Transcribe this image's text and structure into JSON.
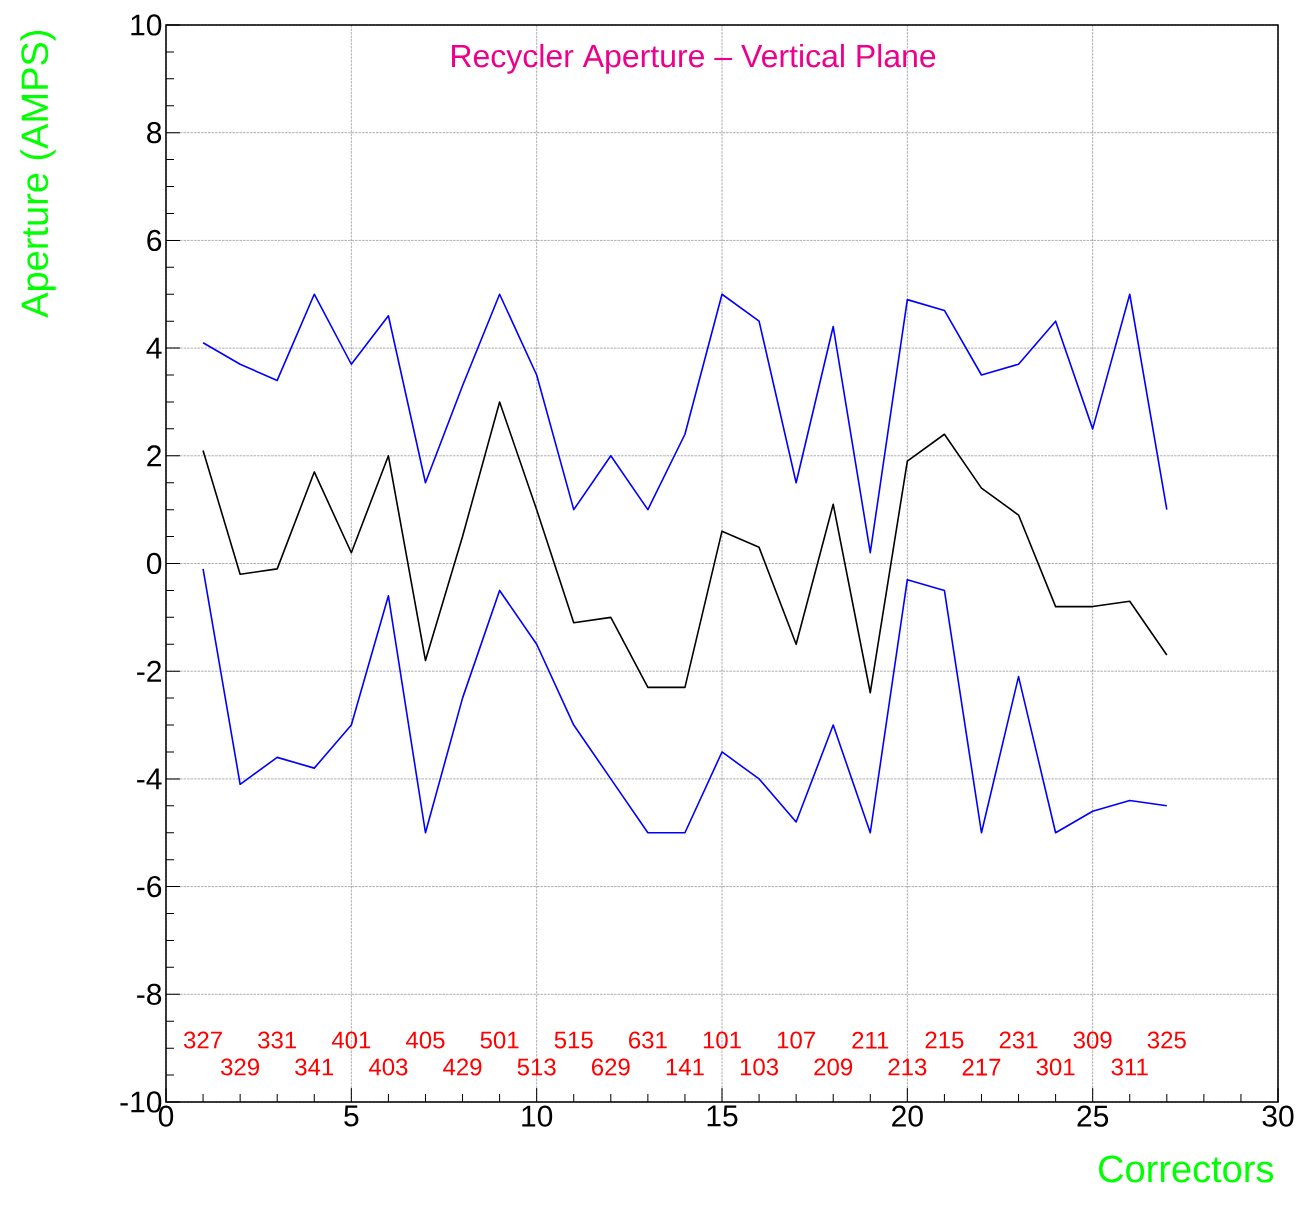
{
  "chart_data": {
    "type": "line",
    "title": "Recycler Aperture – Vertical Plane",
    "xlabel": "Correctors",
    "ylabel": "Aperture (AMPS)",
    "x": [
      1,
      2,
      3,
      4,
      5,
      6,
      7,
      8,
      9,
      10,
      11,
      12,
      13,
      14,
      15,
      16,
      17,
      18,
      19,
      20,
      21,
      22,
      23,
      24,
      25,
      26,
      27
    ],
    "series": [
      {
        "color": "#0000ff",
        "values": [
          4.1,
          3.7,
          3.4,
          5.0,
          3.7,
          4.6,
          1.5,
          3.3,
          5.0,
          3.5,
          1.0,
          2.0,
          1.0,
          2.4,
          5.0,
          4.5,
          1.5,
          4.4,
          0.2,
          4.9,
          4.7,
          3.5,
          3.7,
          4.5,
          2.5,
          5.0,
          1.0
        ]
      },
      {
        "color": "#000000",
        "values": [
          2.1,
          -0.2,
          -0.1,
          1.7,
          0.2,
          2.0,
          -1.8,
          0.5,
          3.0,
          1.0,
          -1.1,
          -1.0,
          -2.3,
          -2.3,
          0.6,
          0.3,
          -1.5,
          1.1,
          -2.4,
          1.9,
          2.4,
          1.4,
          0.9,
          -0.8,
          -0.8,
          -0.7,
          -1.7
        ]
      },
      {
        "color": "#0000ff",
        "values": [
          -0.1,
          -4.1,
          -3.6,
          -3.8,
          -3.0,
          -0.6,
          -5.0,
          -2.5,
          -0.5,
          -1.5,
          -3.0,
          -4.0,
          -5.0,
          -5.0,
          -3.5,
          -4.0,
          -4.8,
          -3.0,
          -5.0,
          -0.3,
          -0.5,
          -5.0,
          -2.1,
          -5.0,
          -4.6,
          -4.4,
          -4.5
        ]
      }
    ],
    "xlim": [
      0,
      30
    ],
    "xticks": [
      0,
      5,
      10,
      15,
      20,
      25,
      30
    ],
    "ylim": [
      -10,
      10
    ],
    "yticks": [
      -10,
      -8,
      -6,
      -4,
      -2,
      0,
      2,
      4,
      6,
      8,
      10
    ],
    "grid": true,
    "marker": "none",
    "line_style": "solid",
    "annotations": [
      "327",
      "329",
      "331",
      "341",
      "401",
      "403",
      "405",
      "429",
      "501",
      "513",
      "515",
      "629",
      "631",
      "141",
      "101",
      "103",
      "107",
      "209",
      "211",
      "213",
      "215",
      "217",
      "231",
      "301",
      "309",
      "311",
      "325"
    ]
  }
}
